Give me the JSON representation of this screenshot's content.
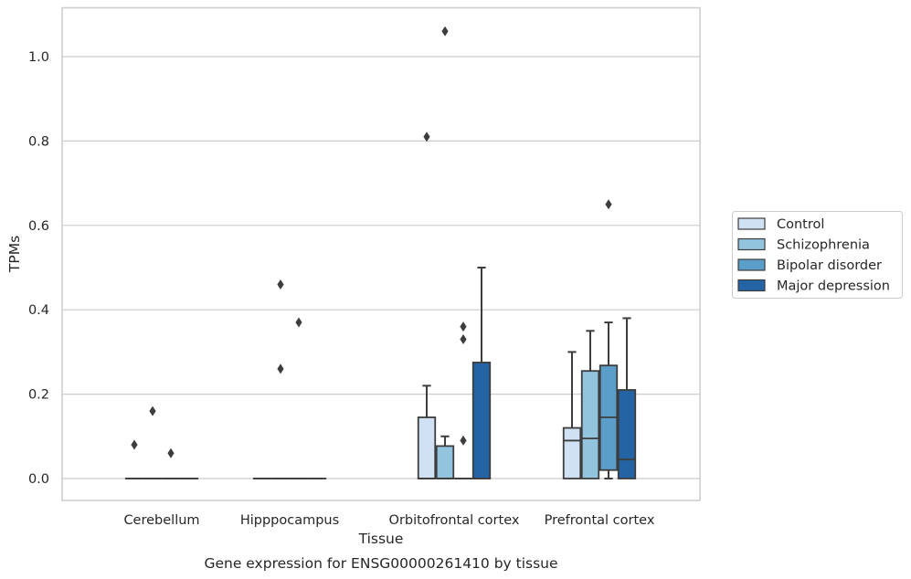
{
  "chart_data": {
    "type": "box",
    "xlabel": "Tissue",
    "ylabel": "TPMs",
    "caption": "Gene expression for ENSG00000261410 by tissue",
    "ylim": [
      -0.05,
      1.12
    ],
    "yticks": [
      "0.0",
      "0.2",
      "0.4",
      "0.6",
      "0.8",
      "1.0"
    ],
    "grid": "horizontal",
    "legend_position": "right",
    "categories": [
      "Cerebellum",
      "Hipppocampus",
      "Orbitofrontal cortex",
      "Prefrontal cortex"
    ],
    "series": [
      {
        "name": "Control",
        "color": "#cfe1f2",
        "boxes": [
          {
            "q1": 0,
            "median": 0,
            "q3": 0,
            "whislo": 0,
            "whishi": 0,
            "fliers": [
              0.08
            ]
          },
          {
            "q1": 0,
            "median": 0,
            "q3": 0,
            "whislo": 0,
            "whishi": 0,
            "fliers": []
          },
          {
            "q1": 0,
            "median": 0,
            "q3": 0.145,
            "whislo": 0,
            "whishi": 0.22,
            "fliers": [
              0.81
            ]
          },
          {
            "q1": 0,
            "median": 0.09,
            "q3": 0.12,
            "whislo": 0,
            "whishi": 0.3,
            "fliers": []
          }
        ]
      },
      {
        "name": "Schizophrenia",
        "color": "#93c4de",
        "boxes": [
          {
            "q1": 0,
            "median": 0,
            "q3": 0,
            "whislo": 0,
            "whishi": 0,
            "fliers": [
              0.16
            ]
          },
          {
            "q1": 0,
            "median": 0,
            "q3": 0,
            "whislo": 0,
            "whishi": 0,
            "fliers": [
              0.46,
              0.26
            ]
          },
          {
            "q1": 0,
            "median": 0,
            "q3": 0.077,
            "whislo": 0,
            "whishi": 0.1,
            "fliers": [
              1.06
            ]
          },
          {
            "q1": 0,
            "median": 0.095,
            "q3": 0.255,
            "whislo": 0,
            "whishi": 0.35,
            "fliers": []
          }
        ]
      },
      {
        "name": "Bipolar disorder",
        "color": "#5a9ec9",
        "boxes": [
          {
            "q1": 0,
            "median": 0,
            "q3": 0,
            "whislo": 0,
            "whishi": 0,
            "fliers": [
              0.06
            ]
          },
          {
            "q1": 0,
            "median": 0,
            "q3": 0,
            "whislo": 0,
            "whishi": 0,
            "fliers": [
              0.37
            ]
          },
          {
            "q1": 0,
            "median": 0,
            "q3": 0,
            "whislo": 0,
            "whishi": 0,
            "fliers": [
              0.36,
              0.33,
              0.09
            ]
          },
          {
            "q1": 0.02,
            "median": 0.145,
            "q3": 0.268,
            "whislo": 0,
            "whishi": 0.37,
            "fliers": [
              0.65
            ]
          }
        ]
      },
      {
        "name": "Major depression",
        "color": "#2464a4",
        "boxes": [
          {
            "q1": 0,
            "median": 0,
            "q3": 0,
            "whislo": 0,
            "whishi": 0,
            "fliers": []
          },
          {
            "q1": 0,
            "median": 0,
            "q3": 0,
            "whislo": 0,
            "whishi": 0,
            "fliers": []
          },
          {
            "q1": 0,
            "median": 0,
            "q3": 0.275,
            "whislo": 0,
            "whishi": 0.5,
            "fliers": []
          },
          {
            "q1": 0,
            "median": 0.045,
            "q3": 0.21,
            "whislo": 0,
            "whishi": 0.38,
            "fliers": []
          }
        ]
      }
    ]
  }
}
